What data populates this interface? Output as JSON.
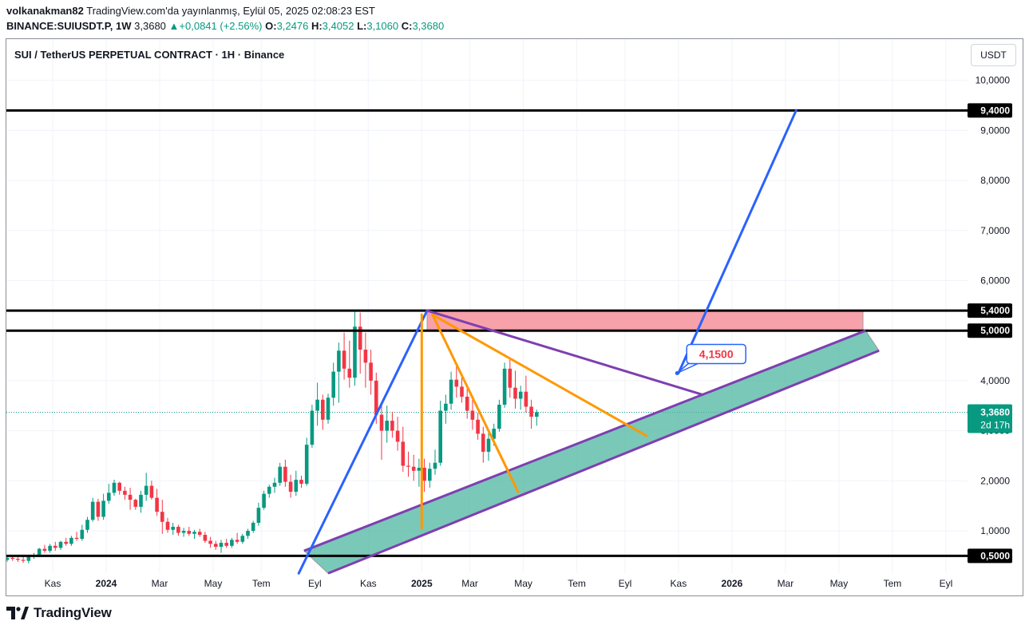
{
  "header": {
    "user": "volkanakman82",
    "published": "TradingView.com'da yayınlanmış, Eylül 05, 2025 02:08:23 EST",
    "symbol": "BINANCE:SUIUSDT.P, 1W",
    "price": "3,3680",
    "change_arrow": "▲",
    "change": "+0,0841 (+2.56%)",
    "o_label": "O:",
    "o_value": "3,2476",
    "h_label": "H:",
    "h_value": "3,4052",
    "l_label": "L:",
    "l_value": "3,1060",
    "c_label": "C:",
    "c_value": "3,3680"
  },
  "pane_title": "SUI / TetherUS PERPETUAL CONTRACT · 1H · Binance",
  "unit_button": "USDT",
  "footer": {
    "brand": "TradingView"
  },
  "colors": {
    "up": "#089981",
    "down": "#f23645",
    "trend_blue": "#2962ff",
    "purple": "#7e3fb0",
    "orange": "#ff9800",
    "channel_fill": "#4db6a0",
    "resistance_zone": "#f7a1ab"
  },
  "chart_data": {
    "type": "candlestick",
    "interval": "1W",
    "ylim": [
      0.2,
      10.5
    ],
    "y_ticks": [
      {
        "value": 1.0,
        "label": "1,0000"
      },
      {
        "value": 2.0,
        "label": "2,0000"
      },
      {
        "value": 3.0,
        "label": "3,0000"
      },
      {
        "value": 4.0,
        "label": "4,0000"
      },
      {
        "value": 6.0,
        "label": "6,0000"
      },
      {
        "value": 7.0,
        "label": "7,0000"
      },
      {
        "value": 8.0,
        "label": "8,0000"
      },
      {
        "value": 9.0,
        "label": "9,0000"
      },
      {
        "value": 10.0,
        "label": "10,0000"
      }
    ],
    "x_ticks": [
      {
        "t": 0.0,
        "label": "Kas",
        "bold": false
      },
      {
        "t": 2.0,
        "label": "2024",
        "bold": true
      },
      {
        "t": 4.0,
        "label": "Mar",
        "bold": false
      },
      {
        "t": 6.0,
        "label": "May",
        "bold": false
      },
      {
        "t": 7.8,
        "label": "Tem",
        "bold": false
      },
      {
        "t": 9.8,
        "label": "Eyl",
        "bold": false
      },
      {
        "t": 11.8,
        "label": "Kas",
        "bold": false
      },
      {
        "t": 13.8,
        "label": "2025",
        "bold": true
      },
      {
        "t": 15.6,
        "label": "Mar",
        "bold": false
      },
      {
        "t": 17.6,
        "label": "May",
        "bold": false
      },
      {
        "t": 19.6,
        "label": "Tem",
        "bold": false
      },
      {
        "t": 21.4,
        "label": "Eyl",
        "bold": false
      },
      {
        "t": 23.4,
        "label": "Kas",
        "bold": false
      },
      {
        "t": 25.4,
        "label": "2026",
        "bold": true
      },
      {
        "t": 27.4,
        "label": "Mar",
        "bold": false
      },
      {
        "t": 29.4,
        "label": "May",
        "bold": false
      },
      {
        "t": 31.4,
        "label": "Tem",
        "bold": false
      },
      {
        "t": 33.4,
        "label": "Eyl",
        "bold": false
      }
    ],
    "horizontal_levels": [
      {
        "value": 9.4,
        "label": "9,4000"
      },
      {
        "value": 5.4,
        "label": "5,4000"
      },
      {
        "value": 5.0,
        "label": "5,0000"
      },
      {
        "value": 0.5,
        "label": "0,5000"
      }
    ],
    "last_price": {
      "value": 3.368,
      "label": "3,3680",
      "countdown": "2d 17h"
    },
    "callout": {
      "label": "4,1500",
      "t": 23.35,
      "price": 4.15
    },
    "resistance_zone": {
      "t_start": 14.0,
      "t_end": 30.3,
      "low": 5.0,
      "high": 5.4
    },
    "channel": {
      "upper": [
        [
          9.4,
          0.6
        ],
        [
          30.4,
          5.0
        ]
      ],
      "lower": [
        [
          10.3,
          0.15
        ],
        [
          30.9,
          4.6
        ]
      ]
    },
    "trendlines": [
      {
        "name": "blue-impulse",
        "color": "blue",
        "points": [
          [
            9.2,
            0.15
          ],
          [
            14.0,
            5.4
          ]
        ]
      },
      {
        "name": "blue-target",
        "color": "blue",
        "points": [
          [
            23.4,
            4.15
          ],
          [
            27.8,
            9.4
          ]
        ]
      },
      {
        "name": "purple-descending",
        "color": "purple",
        "points": [
          [
            14.0,
            5.4
          ],
          [
            24.3,
            3.72
          ]
        ]
      },
      {
        "name": "orange-flag-1",
        "color": "orange",
        "points": [
          [
            14.2,
            5.32
          ],
          [
            17.4,
            1.78
          ]
        ]
      },
      {
        "name": "orange-flag-2",
        "color": "orange",
        "points": [
          [
            14.2,
            5.32
          ],
          [
            22.2,
            2.9
          ]
        ]
      },
      {
        "name": "orange-vertical",
        "color": "orange",
        "points": [
          [
            13.8,
            5.32
          ],
          [
            13.8,
            1.05
          ]
        ]
      }
    ],
    "candles": [
      {
        "o": 0.42,
        "h": 0.5,
        "l": 0.38,
        "c": 0.46
      },
      {
        "o": 0.46,
        "h": 0.52,
        "l": 0.4,
        "c": 0.44
      },
      {
        "o": 0.44,
        "h": 0.5,
        "l": 0.38,
        "c": 0.42
      },
      {
        "o": 0.42,
        "h": 0.48,
        "l": 0.36,
        "c": 0.4
      },
      {
        "o": 0.4,
        "h": 0.5,
        "l": 0.35,
        "c": 0.48
      },
      {
        "o": 0.48,
        "h": 0.56,
        "l": 0.44,
        "c": 0.52
      },
      {
        "o": 0.52,
        "h": 0.66,
        "l": 0.48,
        "c": 0.64
      },
      {
        "o": 0.64,
        "h": 0.72,
        "l": 0.56,
        "c": 0.6
      },
      {
        "o": 0.6,
        "h": 0.74,
        "l": 0.56,
        "c": 0.7
      },
      {
        "o": 0.7,
        "h": 0.78,
        "l": 0.6,
        "c": 0.66
      },
      {
        "o": 0.66,
        "h": 0.8,
        "l": 0.62,
        "c": 0.78
      },
      {
        "o": 0.78,
        "h": 0.86,
        "l": 0.7,
        "c": 0.74
      },
      {
        "o": 0.74,
        "h": 0.9,
        "l": 0.7,
        "c": 0.86
      },
      {
        "o": 0.86,
        "h": 0.98,
        "l": 0.8,
        "c": 0.84
      },
      {
        "o": 0.84,
        "h": 1.12,
        "l": 0.8,
        "c": 1.02
      },
      {
        "o": 1.02,
        "h": 1.28,
        "l": 0.96,
        "c": 1.22
      },
      {
        "o": 1.22,
        "h": 1.66,
        "l": 1.18,
        "c": 1.58
      },
      {
        "o": 1.58,
        "h": 1.64,
        "l": 1.2,
        "c": 1.28
      },
      {
        "o": 1.28,
        "h": 1.74,
        "l": 1.22,
        "c": 1.6
      },
      {
        "o": 1.6,
        "h": 1.94,
        "l": 1.54,
        "c": 1.76
      },
      {
        "o": 1.76,
        "h": 2.02,
        "l": 1.7,
        "c": 1.96
      },
      {
        "o": 1.96,
        "h": 1.98,
        "l": 1.72,
        "c": 1.8
      },
      {
        "o": 1.8,
        "h": 1.88,
        "l": 1.62,
        "c": 1.72
      },
      {
        "o": 1.72,
        "h": 1.86,
        "l": 1.42,
        "c": 1.62
      },
      {
        "o": 1.62,
        "h": 1.64,
        "l": 1.42,
        "c": 1.48
      },
      {
        "o": 1.48,
        "h": 1.8,
        "l": 1.36,
        "c": 1.72
      },
      {
        "o": 1.72,
        "h": 2.16,
        "l": 1.6,
        "c": 1.9
      },
      {
        "o": 1.9,
        "h": 2.0,
        "l": 1.62,
        "c": 1.66
      },
      {
        "o": 1.66,
        "h": 1.84,
        "l": 1.3,
        "c": 1.38
      },
      {
        "o": 1.38,
        "h": 1.62,
        "l": 0.94,
        "c": 1.18
      },
      {
        "o": 1.18,
        "h": 1.26,
        "l": 0.96,
        "c": 1.02
      },
      {
        "o": 1.02,
        "h": 1.16,
        "l": 0.92,
        "c": 1.08
      },
      {
        "o": 1.08,
        "h": 1.12,
        "l": 0.9,
        "c": 0.96
      },
      {
        "o": 0.96,
        "h": 1.06,
        "l": 0.88,
        "c": 1.0
      },
      {
        "o": 1.0,
        "h": 1.08,
        "l": 0.9,
        "c": 0.94
      },
      {
        "o": 0.94,
        "h": 1.02,
        "l": 0.84,
        "c": 0.98
      },
      {
        "o": 0.98,
        "h": 1.04,
        "l": 0.88,
        "c": 0.92
      },
      {
        "o": 0.92,
        "h": 0.98,
        "l": 0.76,
        "c": 0.8
      },
      {
        "o": 0.8,
        "h": 0.88,
        "l": 0.66,
        "c": 0.74
      },
      {
        "o": 0.74,
        "h": 0.8,
        "l": 0.62,
        "c": 0.68
      },
      {
        "o": 0.68,
        "h": 0.82,
        "l": 0.56,
        "c": 0.76
      },
      {
        "o": 0.76,
        "h": 0.84,
        "l": 0.66,
        "c": 0.7
      },
      {
        "o": 0.7,
        "h": 0.86,
        "l": 0.66,
        "c": 0.82
      },
      {
        "o": 0.82,
        "h": 0.96,
        "l": 0.74,
        "c": 0.78
      },
      {
        "o": 0.78,
        "h": 0.94,
        "l": 0.74,
        "c": 0.9
      },
      {
        "o": 0.9,
        "h": 1.04,
        "l": 0.84,
        "c": 1.0
      },
      {
        "o": 1.0,
        "h": 1.2,
        "l": 0.96,
        "c": 1.16
      },
      {
        "o": 1.16,
        "h": 1.56,
        "l": 1.1,
        "c": 1.46
      },
      {
        "o": 1.46,
        "h": 1.8,
        "l": 1.42,
        "c": 1.74
      },
      {
        "o": 1.74,
        "h": 1.92,
        "l": 1.66,
        "c": 1.88
      },
      {
        "o": 1.88,
        "h": 2.06,
        "l": 1.76,
        "c": 1.96
      },
      {
        "o": 1.96,
        "h": 2.36,
        "l": 1.9,
        "c": 2.28
      },
      {
        "o": 2.28,
        "h": 2.42,
        "l": 1.88,
        "c": 1.98
      },
      {
        "o": 1.98,
        "h": 2.12,
        "l": 1.66,
        "c": 1.78
      },
      {
        "o": 1.78,
        "h": 2.2,
        "l": 1.7,
        "c": 2.02
      },
      {
        "o": 2.02,
        "h": 2.1,
        "l": 1.86,
        "c": 1.94
      },
      {
        "o": 1.94,
        "h": 2.86,
        "l": 1.9,
        "c": 2.72
      },
      {
        "o": 2.72,
        "h": 3.52,
        "l": 2.66,
        "c": 3.4
      },
      {
        "o": 3.4,
        "h": 3.96,
        "l": 3.1,
        "c": 3.62
      },
      {
        "o": 3.62,
        "h": 3.72,
        "l": 3.02,
        "c": 3.22
      },
      {
        "o": 3.22,
        "h": 3.74,
        "l": 3.14,
        "c": 3.66
      },
      {
        "o": 3.66,
        "h": 4.36,
        "l": 3.5,
        "c": 4.18
      },
      {
        "o": 4.18,
        "h": 4.76,
        "l": 3.56,
        "c": 4.6
      },
      {
        "o": 4.6,
        "h": 4.96,
        "l": 4.02,
        "c": 4.24
      },
      {
        "o": 4.24,
        "h": 4.8,
        "l": 3.86,
        "c": 4.06
      },
      {
        "o": 4.06,
        "h": 5.38,
        "l": 3.9,
        "c": 5.08
      },
      {
        "o": 5.08,
        "h": 5.36,
        "l": 4.14,
        "c": 4.62
      },
      {
        "o": 4.62,
        "h": 4.96,
        "l": 3.86,
        "c": 4.36
      },
      {
        "o": 4.36,
        "h": 4.62,
        "l": 3.72,
        "c": 4.0
      },
      {
        "o": 4.0,
        "h": 4.16,
        "l": 3.14,
        "c": 3.32
      },
      {
        "o": 3.32,
        "h": 3.58,
        "l": 2.42,
        "c": 3.0
      },
      {
        "o": 3.0,
        "h": 3.5,
        "l": 2.76,
        "c": 3.2
      },
      {
        "o": 3.2,
        "h": 3.38,
        "l": 2.86,
        "c": 3.0
      },
      {
        "o": 3.0,
        "h": 3.28,
        "l": 2.6,
        "c": 2.78
      },
      {
        "o": 2.78,
        "h": 3.08,
        "l": 2.18,
        "c": 2.3
      },
      {
        "o": 2.3,
        "h": 2.58,
        "l": 2.08,
        "c": 2.28
      },
      {
        "o": 2.28,
        "h": 2.52,
        "l": 2.0,
        "c": 2.2
      },
      {
        "o": 2.2,
        "h": 2.44,
        "l": 1.88,
        "c": 2.26
      },
      {
        "o": 2.26,
        "h": 2.44,
        "l": 1.78,
        "c": 2.0
      },
      {
        "o": 2.0,
        "h": 2.36,
        "l": 1.86,
        "c": 2.24
      },
      {
        "o": 2.24,
        "h": 2.62,
        "l": 2.12,
        "c": 2.36
      },
      {
        "o": 2.36,
        "h": 3.6,
        "l": 2.3,
        "c": 3.4
      },
      {
        "o": 3.4,
        "h": 3.72,
        "l": 3.14,
        "c": 3.54
      },
      {
        "o": 3.54,
        "h": 4.18,
        "l": 3.42,
        "c": 4.02
      },
      {
        "o": 4.02,
        "h": 4.3,
        "l": 3.66,
        "c": 3.88
      },
      {
        "o": 3.88,
        "h": 4.08,
        "l": 3.56,
        "c": 3.68
      },
      {
        "o": 3.68,
        "h": 3.84,
        "l": 3.24,
        "c": 3.4
      },
      {
        "o": 3.4,
        "h": 3.62,
        "l": 3.02,
        "c": 3.22
      },
      {
        "o": 3.22,
        "h": 3.36,
        "l": 2.82,
        "c": 2.94
      },
      {
        "o": 2.94,
        "h": 3.08,
        "l": 2.36,
        "c": 2.58
      },
      {
        "o": 2.58,
        "h": 2.96,
        "l": 2.4,
        "c": 2.84
      },
      {
        "o": 2.84,
        "h": 3.14,
        "l": 2.7,
        "c": 3.04
      },
      {
        "o": 3.04,
        "h": 3.62,
        "l": 2.98,
        "c": 3.52
      },
      {
        "o": 3.52,
        "h": 4.36,
        "l": 3.46,
        "c": 4.24
      },
      {
        "o": 4.24,
        "h": 4.42,
        "l": 3.66,
        "c": 3.86
      },
      {
        "o": 3.86,
        "h": 4.2,
        "l": 3.44,
        "c": 3.64
      },
      {
        "o": 3.64,
        "h": 3.9,
        "l": 3.42,
        "c": 3.78
      },
      {
        "o": 3.78,
        "h": 4.1,
        "l": 3.36,
        "c": 3.48
      },
      {
        "o": 3.48,
        "h": 3.62,
        "l": 3.04,
        "c": 3.28
      },
      {
        "o": 3.28,
        "h": 3.42,
        "l": 3.1,
        "c": 3.37
      }
    ]
  }
}
